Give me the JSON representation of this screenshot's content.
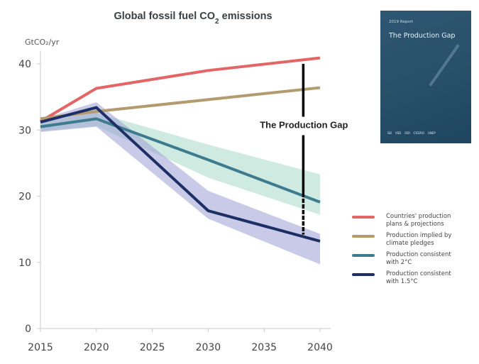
{
  "chart_data": {
    "type": "line",
    "title": "Global fossil fuel CO₂ emissions",
    "title_parts": {
      "pre": "Global fossil fuel CO",
      "sub": "2",
      "post": " emissions"
    },
    "ylabel": "GtCO₂/yr",
    "xlabel": "",
    "xlim": [
      2015,
      2040
    ],
    "ylim": [
      0,
      42
    ],
    "xticks": [
      2015,
      2020,
      2025,
      2030,
      2035,
      2040
    ],
    "xtick_labels": [
      "2015",
      "2020",
      "2025",
      "2030",
      "2035",
      "2040"
    ],
    "yticks": [
      0,
      10,
      20,
      30,
      40
    ],
    "ytick_labels": [
      "0",
      "10",
      "20",
      "30",
      "40"
    ],
    "grid": false,
    "legend_position": "right",
    "series": [
      {
        "name": "Countries' production plans & projections",
        "color": "#e46566",
        "x": [
          2015,
          2020,
          2030,
          2040
        ],
        "values": [
          31.3,
          36.3,
          39.0,
          40.9
        ]
      },
      {
        "name": "Production implied by climate pledges",
        "color": "#b39a6f",
        "x": [
          2015,
          2020,
          2040
        ],
        "values": [
          31.7,
          32.8,
          36.4
        ]
      },
      {
        "name": "Production consistent with 2°C",
        "color": "#3d7b8f",
        "x": [
          2015,
          2020,
          2030,
          2040
        ],
        "values": [
          30.5,
          31.7,
          25.5,
          19.1
        ],
        "band": {
          "color": "#a8d8c6",
          "upper": [
            31.3,
            32.6,
            27.8,
            23.3
          ],
          "lower": [
            29.8,
            30.6,
            22.8,
            17.2
          ]
        }
      },
      {
        "name": "Production consistent with 1.5°C",
        "color": "#1e2f66",
        "x": [
          2015,
          2020,
          2030,
          2040
        ],
        "values": [
          31.2,
          33.4,
          17.8,
          13.2
        ],
        "band": {
          "color": "#9b9fd4",
          "upper": [
            31.6,
            34.2,
            20.8,
            14.3
          ],
          "lower": [
            29.7,
            30.5,
            16.6,
            9.7
          ]
        }
      }
    ],
    "annotations": [
      {
        "text": "The Production Gap",
        "x": 2038.5,
        "from": 40.0,
        "to": 14.2
      }
    ]
  },
  "legend": [
    {
      "label": "Countries' production plans & projections",
      "color": "#e46566"
    },
    {
      "label": "Production implied by climate pledges",
      "color": "#b39a6f"
    },
    {
      "label": "Production consistent with 2°C",
      "color": "#3d7b8f"
    },
    {
      "label": "Production consistent with 1.5°C",
      "color": "#1e2f66"
    }
  ],
  "cover": {
    "year_label": "2019 Report",
    "title": "The Production Gap",
    "logos": [
      "SEI",
      "IISD",
      "ODI",
      "CICERO",
      "UNEP"
    ]
  }
}
